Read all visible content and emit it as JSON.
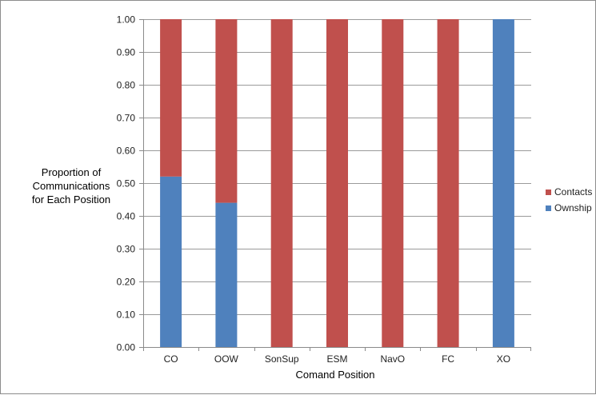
{
  "chart_data": {
    "type": "bar",
    "stacked": true,
    "categories": [
      "CO",
      "OOW",
      "SonSup",
      "ESM",
      "NavO",
      "FC",
      "XO"
    ],
    "series": [
      {
        "name": "Ownship",
        "color": "#4f81bd",
        "values": [
          0.52,
          0.44,
          0.0,
          0.0,
          0.0,
          0.0,
          1.0
        ]
      },
      {
        "name": "Contacts",
        "color": "#c0504d",
        "values": [
          0.48,
          0.56,
          1.0,
          1.0,
          1.0,
          1.0,
          0.0
        ]
      }
    ],
    "xlabel": "Comand Position",
    "ylabel_lines": [
      "Proportion of",
      "Communications",
      "for Each Position"
    ],
    "ylim": [
      0,
      1
    ],
    "yticks": [
      "0.00",
      "0.10",
      "0.20",
      "0.30",
      "0.40",
      "0.50",
      "0.60",
      "0.70",
      "0.80",
      "0.90",
      "1.00"
    ],
    "grid": true,
    "legend": {
      "position": "right",
      "entries": [
        {
          "label": "Contacts",
          "color": "#c0504d"
        },
        {
          "label": "Ownship",
          "color": "#4f81bd"
        }
      ]
    }
  }
}
